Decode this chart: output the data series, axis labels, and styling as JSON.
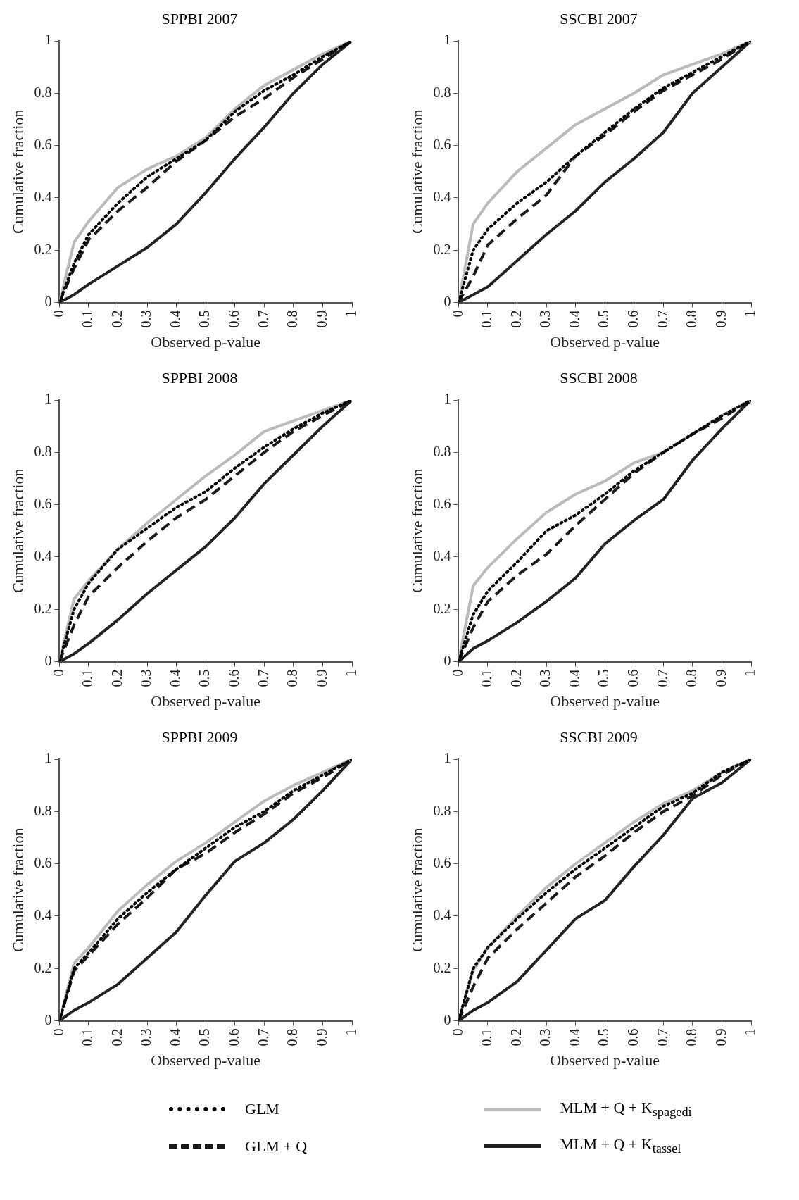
{
  "chart_data": [
    {
      "type": "line",
      "title": "SPPBI 2007",
      "xlabel": "Observed p-value",
      "ylabel": "Cumulative fraction",
      "x": [
        0,
        0.05,
        0.1,
        0.2,
        0.3,
        0.4,
        0.5,
        0.6,
        0.7,
        0.8,
        0.9,
        1
      ],
      "xlim": [
        0,
        1
      ],
      "xticks": [
        0,
        0.1,
        0.2,
        0.3,
        0.4,
        0.5,
        0.6,
        0.7,
        0.8,
        0.9,
        1
      ],
      "ylim": [
        0,
        1
      ],
      "yticks": [
        0,
        0.2,
        0.4,
        0.6,
        0.8,
        1
      ],
      "marker": "none",
      "series": [
        {
          "color": "#000000",
          "line_style": "dotted",
          "values": [
            0,
            0.15,
            0.26,
            0.38,
            0.48,
            0.55,
            0.62,
            0.73,
            0.81,
            0.87,
            0.94,
            1
          ]
        },
        {
          "color": "#1a1a1a",
          "line_style": "dashed",
          "values": [
            0,
            0.13,
            0.24,
            0.35,
            0.44,
            0.54,
            0.62,
            0.71,
            0.78,
            0.86,
            0.93,
            1
          ]
        },
        {
          "color": "#bbbbbb",
          "line_style": "solid",
          "values": [
            0,
            0.23,
            0.31,
            0.44,
            0.51,
            0.56,
            0.63,
            0.74,
            0.83,
            0.89,
            0.95,
            1
          ]
        },
        {
          "color": "#222222",
          "line_style": "solid",
          "values": [
            0,
            0.03,
            0.07,
            0.14,
            0.21,
            0.3,
            0.42,
            0.55,
            0.67,
            0.8,
            0.91,
            1
          ]
        }
      ]
    },
    {
      "type": "line",
      "title": "SSCBI 2007",
      "xlabel": "Observed p-value",
      "ylabel": "Cumulative fraction",
      "x": [
        0,
        0.05,
        0.1,
        0.2,
        0.3,
        0.4,
        0.5,
        0.6,
        0.7,
        0.8,
        0.9,
        1
      ],
      "xlim": [
        0,
        1
      ],
      "xticks": [
        0,
        0.1,
        0.2,
        0.3,
        0.4,
        0.5,
        0.6,
        0.7,
        0.8,
        0.9,
        1
      ],
      "ylim": [
        0,
        1
      ],
      "yticks": [
        0,
        0.2,
        0.4,
        0.6,
        0.8,
        1
      ],
      "marker": "none",
      "series": [
        {
          "color": "#000000",
          "line_style": "dotted",
          "values": [
            0,
            0.2,
            0.28,
            0.38,
            0.46,
            0.56,
            0.65,
            0.74,
            0.82,
            0.88,
            0.94,
            1
          ]
        },
        {
          "color": "#1a1a1a",
          "line_style": "dashed",
          "values": [
            0,
            0.1,
            0.22,
            0.32,
            0.41,
            0.56,
            0.64,
            0.73,
            0.81,
            0.87,
            0.93,
            1
          ]
        },
        {
          "color": "#bbbbbb",
          "line_style": "solid",
          "values": [
            0,
            0.3,
            0.38,
            0.5,
            0.59,
            0.68,
            0.74,
            0.8,
            0.87,
            0.91,
            0.95,
            1
          ]
        },
        {
          "color": "#222222",
          "line_style": "solid",
          "values": [
            0,
            0.03,
            0.06,
            0.16,
            0.26,
            0.35,
            0.46,
            0.55,
            0.65,
            0.8,
            0.9,
            1
          ]
        }
      ]
    },
    {
      "type": "line",
      "title": "SPPBI 2008",
      "xlabel": "Observed p-value",
      "ylabel": "Cumulative fraction",
      "x": [
        0,
        0.05,
        0.1,
        0.2,
        0.3,
        0.4,
        0.5,
        0.6,
        0.7,
        0.8,
        0.9,
        1
      ],
      "xlim": [
        0,
        1
      ],
      "xticks": [
        0,
        0.1,
        0.2,
        0.3,
        0.4,
        0.5,
        0.6,
        0.7,
        0.8,
        0.9,
        1
      ],
      "ylim": [
        0,
        1
      ],
      "yticks": [
        0,
        0.2,
        0.4,
        0.6,
        0.8,
        1
      ],
      "marker": "none",
      "series": [
        {
          "color": "#000000",
          "line_style": "dotted",
          "values": [
            0,
            0.2,
            0.3,
            0.43,
            0.51,
            0.59,
            0.65,
            0.74,
            0.82,
            0.89,
            0.95,
            1
          ]
        },
        {
          "color": "#1a1a1a",
          "line_style": "dashed",
          "values": [
            0,
            0.14,
            0.25,
            0.36,
            0.46,
            0.55,
            0.62,
            0.71,
            0.8,
            0.88,
            0.94,
            1
          ]
        },
        {
          "color": "#bbbbbb",
          "line_style": "solid",
          "values": [
            0,
            0.24,
            0.31,
            0.43,
            0.53,
            0.62,
            0.71,
            0.79,
            0.88,
            0.92,
            0.96,
            1
          ]
        },
        {
          "color": "#222222",
          "line_style": "solid",
          "values": [
            0,
            0.03,
            0.07,
            0.16,
            0.26,
            0.35,
            0.44,
            0.55,
            0.68,
            0.79,
            0.9,
            1
          ]
        }
      ]
    },
    {
      "type": "line",
      "title": "SSCBI 2008",
      "xlabel": "Observed p-value",
      "ylabel": "Cumulative fraction",
      "x": [
        0,
        0.05,
        0.1,
        0.2,
        0.3,
        0.4,
        0.5,
        0.6,
        0.7,
        0.8,
        0.9,
        1
      ],
      "xlim": [
        0,
        1
      ],
      "xticks": [
        0,
        0.1,
        0.2,
        0.3,
        0.4,
        0.5,
        0.6,
        0.7,
        0.8,
        0.9,
        1
      ],
      "ylim": [
        0,
        1
      ],
      "yticks": [
        0,
        0.2,
        0.4,
        0.6,
        0.8,
        1
      ],
      "marker": "none",
      "series": [
        {
          "color": "#000000",
          "line_style": "dotted",
          "values": [
            0,
            0.18,
            0.27,
            0.38,
            0.5,
            0.56,
            0.64,
            0.73,
            0.8,
            0.87,
            0.94,
            1
          ]
        },
        {
          "color": "#1a1a1a",
          "line_style": "dashed",
          "values": [
            0,
            0.13,
            0.23,
            0.33,
            0.41,
            0.52,
            0.62,
            0.72,
            0.8,
            0.87,
            0.93,
            1
          ]
        },
        {
          "color": "#bbbbbb",
          "line_style": "solid",
          "values": [
            0,
            0.29,
            0.36,
            0.47,
            0.57,
            0.64,
            0.69,
            0.76,
            0.8,
            0.87,
            0.94,
            1
          ]
        },
        {
          "color": "#222222",
          "line_style": "solid",
          "values": [
            0,
            0.05,
            0.08,
            0.15,
            0.23,
            0.32,
            0.45,
            0.54,
            0.62,
            0.77,
            0.89,
            1
          ]
        }
      ]
    },
    {
      "type": "line",
      "title": "SPPBI 2009",
      "xlabel": "Observed p-value",
      "ylabel": "Cumulative fraction",
      "x": [
        0,
        0.05,
        0.1,
        0.2,
        0.3,
        0.4,
        0.5,
        0.6,
        0.7,
        0.8,
        0.9,
        1
      ],
      "xlim": [
        0,
        1
      ],
      "xticks": [
        0,
        0.1,
        0.2,
        0.3,
        0.4,
        0.5,
        0.6,
        0.7,
        0.8,
        0.9,
        1
      ],
      "ylim": [
        0,
        1
      ],
      "yticks": [
        0,
        0.2,
        0.4,
        0.6,
        0.8,
        1
      ],
      "marker": "none",
      "series": [
        {
          "color": "#000000",
          "line_style": "dotted",
          "values": [
            0,
            0.2,
            0.26,
            0.39,
            0.49,
            0.58,
            0.66,
            0.74,
            0.8,
            0.88,
            0.94,
            1
          ]
        },
        {
          "color": "#1a1a1a",
          "line_style": "dashed",
          "values": [
            0,
            0.19,
            0.25,
            0.37,
            0.47,
            0.58,
            0.64,
            0.72,
            0.79,
            0.87,
            0.93,
            1
          ]
        },
        {
          "color": "#bbbbbb",
          "line_style": "solid",
          "values": [
            0,
            0.22,
            0.28,
            0.42,
            0.52,
            0.61,
            0.68,
            0.76,
            0.84,
            0.9,
            0.95,
            1
          ]
        },
        {
          "color": "#222222",
          "line_style": "solid",
          "values": [
            0,
            0.04,
            0.07,
            0.14,
            0.24,
            0.34,
            0.48,
            0.61,
            0.68,
            0.77,
            0.88,
            1
          ]
        }
      ]
    },
    {
      "type": "line",
      "title": "SSCBI 2009",
      "xlabel": "Observed p-value",
      "ylabel": "Cumulative fraction",
      "x": [
        0,
        0.05,
        0.1,
        0.2,
        0.3,
        0.4,
        0.5,
        0.6,
        0.7,
        0.8,
        0.9,
        1
      ],
      "xlim": [
        0,
        1
      ],
      "xticks": [
        0,
        0.1,
        0.2,
        0.3,
        0.4,
        0.5,
        0.6,
        0.7,
        0.8,
        0.9,
        1
      ],
      "ylim": [
        0,
        1
      ],
      "yticks": [
        0,
        0.2,
        0.4,
        0.6,
        0.8,
        1
      ],
      "legend": "bottom",
      "marker": "none",
      "series": [
        {
          "name": "GLM",
          "color": "#000000",
          "line_style": "dotted",
          "values": [
            0,
            0.2,
            0.28,
            0.39,
            0.49,
            0.58,
            0.66,
            0.74,
            0.82,
            0.87,
            0.95,
            1
          ]
        },
        {
          "name": "GLM + Q",
          "color": "#1a1a1a",
          "line_style": "dashed",
          "values": [
            0,
            0.13,
            0.24,
            0.35,
            0.45,
            0.55,
            0.63,
            0.72,
            0.8,
            0.86,
            0.94,
            1
          ]
        },
        {
          "name": "MLM + Q + K$_{spagedi}$",
          "color": "#bbbbbb",
          "line_style": "solid",
          "values": [
            0,
            0.19,
            0.28,
            0.4,
            0.51,
            0.6,
            0.68,
            0.76,
            0.83,
            0.88,
            0.95,
            1
          ]
        },
        {
          "name": "MLM + Q + K$_{tassel}$",
          "color": "#222222",
          "line_style": "solid",
          "values": [
            0,
            0.04,
            0.07,
            0.15,
            0.27,
            0.39,
            0.46,
            0.59,
            0.71,
            0.85,
            0.91,
            1
          ]
        }
      ]
    }
  ]
}
